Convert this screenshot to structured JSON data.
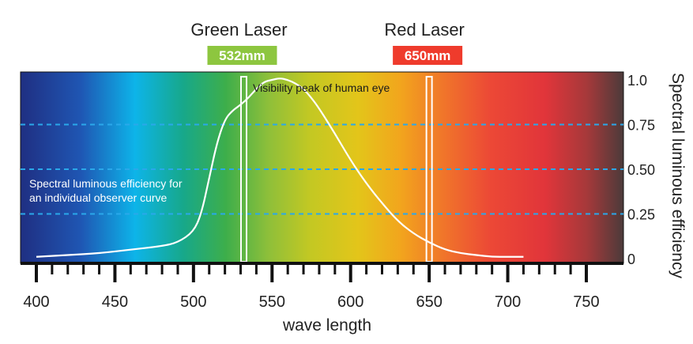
{
  "chart_data": {
    "type": "line",
    "xlabel": "wave length",
    "ylabel": "Spectral luminous efficiency",
    "xlim": [
      400,
      770
    ],
    "ylim": [
      0,
      1.05
    ],
    "x_ticks": [
      "400",
      "450",
      "500",
      "550",
      "600",
      "650",
      "700",
      "750"
    ],
    "x_tick_values": [
      400,
      450,
      500,
      550,
      600,
      650,
      700,
      750
    ],
    "y_ticks": [
      "0",
      "0.25",
      "0.50",
      "0.75",
      "1.0"
    ],
    "y_tick_values": [
      0,
      0.25,
      0.5,
      0.75,
      1.0
    ],
    "y_axis_position": "right",
    "grid": "dashed horizontal at 0.25, 0.50, 0.75",
    "background": "visible spectrum gradient (violet to red)",
    "series": [
      {
        "x": [
          400,
          420,
          440,
          460,
          480,
          490,
          500,
          505,
          510,
          515,
          520,
          525,
          530,
          535,
          540,
          545,
          550,
          555,
          560,
          565,
          570,
          575,
          580,
          590,
          600,
          610,
          620,
          630,
          640,
          650,
          660,
          670,
          680,
          690,
          700,
          710
        ],
        "y": [
          0.01,
          0.02,
          0.03,
          0.05,
          0.07,
          0.09,
          0.15,
          0.25,
          0.45,
          0.65,
          0.78,
          0.83,
          0.86,
          0.9,
          0.95,
          0.99,
          1.0,
          1.01,
          1.0,
          0.98,
          0.95,
          0.9,
          0.84,
          0.7,
          0.55,
          0.42,
          0.31,
          0.21,
          0.14,
          0.09,
          0.05,
          0.03,
          0.02,
          0.01,
          0.01,
          0.01
        ],
        "color": "#ffffff"
      }
    ],
    "markers": [
      {
        "x": 532,
        "title": "Green Laser",
        "label": "532mm",
        "color": "#8dc63f"
      },
      {
        "x": 650,
        "title": "Red Laser",
        "label": "650mm",
        "color": "#ef3b2c"
      }
    ],
    "annotations": [
      {
        "text": "Visibility peak of human eye"
      },
      {
        "lines": [
          "Spectral luminous efficiency for",
          "an individual observer curve"
        ]
      }
    ]
  }
}
